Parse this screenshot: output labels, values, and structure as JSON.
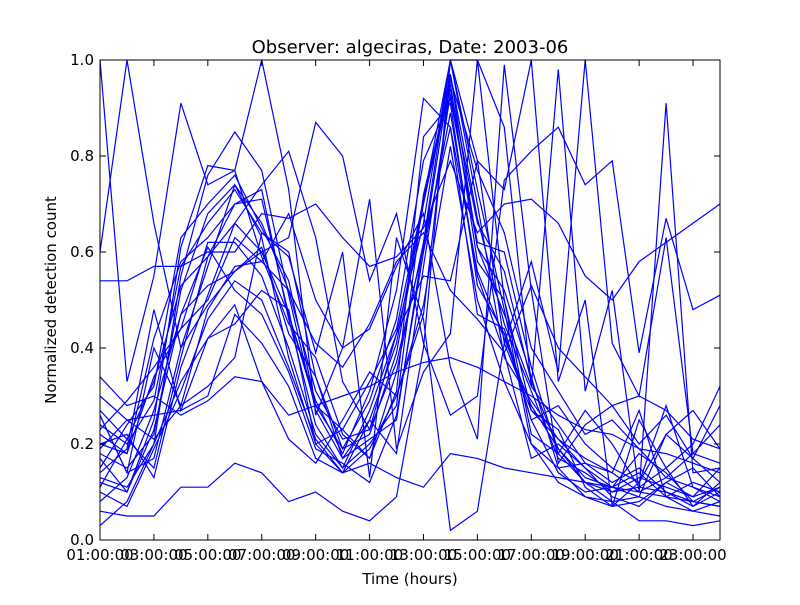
{
  "chart_data": {
    "type": "line",
    "title": "Observer: algeciras, Date: 2003-06",
    "xlabel": "Time (hours)",
    "ylabel": "Normalized detection count",
    "xlim": [
      1,
      24
    ],
    "ylim": [
      0,
      1
    ],
    "x_tick_labels": [
      "01:00:00",
      "03:00:00",
      "05:00:00",
      "07:00:00",
      "09:00:00",
      "11:00:00",
      "13:00:00",
      "15:00:00",
      "17:00:00",
      "19:00:00",
      "21:00:00",
      "23:00:00"
    ],
    "y_tick_labels": [
      "0.0",
      "0.2",
      "0.4",
      "0.6",
      "0.8",
      "1.0"
    ],
    "line_color": "#0000ff",
    "grid": false,
    "x": [
      1,
      2,
      3,
      4,
      5,
      6,
      7,
      8,
      9,
      10,
      11,
      12,
      13,
      14,
      15,
      16,
      17,
      18,
      19,
      20,
      21,
      22,
      23,
      24
    ],
    "series": [
      {
        "values": [
          1.0,
          0.33,
          0.55,
          0.91,
          0.74,
          0.77,
          1.0,
          0.73,
          0.26,
          0.4,
          0.71,
          0.19,
          0.35,
          0.43,
          1.0,
          0.86,
          0.32,
          0.98,
          0.31,
          0.52,
          0.1,
          0.91,
          0.14,
          0.15
        ]
      },
      {
        "values": [
          0.2,
          0.18,
          0.42,
          0.58,
          0.63,
          0.7,
          0.73,
          0.46,
          0.24,
          0.15,
          0.2,
          0.28,
          0.72,
          0.95,
          0.58,
          0.5,
          0.27,
          0.21,
          0.15,
          0.11,
          0.09,
          0.22,
          0.17,
          0.12
        ]
      },
      {
        "values": [
          0.15,
          0.24,
          0.32,
          0.63,
          0.7,
          0.76,
          0.65,
          0.54,
          0.28,
          0.19,
          0.29,
          0.46,
          0.79,
          0.92,
          0.62,
          0.6,
          0.36,
          0.18,
          0.27,
          0.2,
          0.11,
          0.15,
          0.07,
          0.1
        ]
      },
      {
        "values": [
          0.26,
          0.14,
          0.17,
          0.4,
          0.57,
          0.74,
          0.63,
          0.38,
          0.2,
          0.14,
          0.25,
          0.41,
          0.71,
          1.0,
          0.73,
          0.48,
          0.2,
          0.15,
          0.16,
          0.14,
          0.27,
          0.09,
          0.06,
          0.08
        ]
      },
      {
        "values": [
          0.08,
          0.13,
          0.27,
          0.47,
          0.53,
          0.56,
          0.61,
          0.43,
          0.34,
          0.17,
          0.21,
          0.25,
          0.62,
          1.0,
          0.79,
          0.41,
          0.27,
          0.23,
          0.11,
          0.07,
          0.12,
          0.28,
          0.11,
          0.09
        ]
      },
      {
        "values": [
          0.03,
          0.08,
          0.2,
          0.55,
          0.76,
          0.85,
          0.77,
          0.51,
          0.27,
          0.17,
          0.25,
          0.18,
          0.57,
          0.93,
          0.61,
          0.52,
          0.34,
          0.15,
          0.09,
          0.07,
          0.08,
          0.12,
          0.09,
          0.11
        ]
      },
      {
        "values": [
          0.12,
          0.1,
          0.25,
          0.61,
          0.78,
          0.77,
          0.59,
          0.45,
          0.38,
          0.22,
          0.17,
          0.31,
          0.84,
          0.91,
          0.53,
          0.43,
          0.25,
          0.14,
          0.1,
          0.11,
          0.18,
          0.14,
          0.08,
          0.07
        ]
      },
      {
        "values": [
          0.27,
          0.21,
          0.15,
          0.38,
          0.59,
          0.7,
          0.71,
          0.47,
          0.29,
          0.18,
          0.31,
          0.52,
          0.92,
          0.86,
          0.56,
          0.42,
          0.28,
          0.19,
          0.13,
          0.11,
          0.14,
          0.09,
          0.12,
          0.1
        ]
      },
      {
        "values": [
          0.18,
          0.15,
          0.22,
          0.52,
          0.68,
          0.74,
          0.66,
          0.52,
          0.31,
          0.21,
          0.23,
          0.37,
          0.61,
          0.97,
          0.67,
          0.45,
          0.31,
          0.17,
          0.14,
          0.1,
          0.13,
          0.11,
          0.09,
          0.15
        ]
      },
      {
        "values": [
          0.22,
          0.18,
          0.34,
          0.44,
          0.62,
          0.62,
          0.55,
          0.4,
          0.22,
          0.15,
          0.27,
          0.43,
          0.66,
          1.0,
          0.7,
          0.38,
          0.29,
          0.21,
          0.17,
          0.14,
          0.1,
          0.13,
          0.11,
          0.08
        ]
      },
      {
        "values": [
          0.1,
          0.07,
          0.19,
          0.31,
          0.46,
          0.54,
          0.5,
          0.36,
          0.21,
          0.14,
          0.19,
          0.3,
          0.49,
          0.82,
          0.5,
          0.33,
          0.2,
          0.12,
          0.09,
          0.08,
          0.09,
          0.07,
          0.06,
          0.05
        ]
      },
      {
        "values": [
          0.24,
          0.2,
          0.29,
          0.57,
          0.66,
          0.73,
          0.64,
          0.6,
          0.34,
          0.19,
          0.22,
          0.39,
          0.7,
          0.97,
          0.61,
          0.47,
          0.32,
          0.24,
          0.16,
          0.12,
          0.15,
          0.1,
          0.07,
          0.12
        ]
      },
      {
        "values": [
          0.17,
          0.1,
          0.23,
          0.47,
          0.61,
          0.52,
          0.47,
          0.35,
          0.19,
          0.16,
          0.12,
          0.26,
          0.6,
          0.89,
          0.55,
          0.39,
          0.17,
          0.2,
          0.15,
          0.09,
          0.07,
          0.12,
          0.15,
          0.09
        ]
      },
      {
        "values": [
          0.11,
          0.21,
          0.33,
          0.53,
          0.59,
          0.66,
          0.6,
          0.47,
          0.28,
          0.23,
          0.33,
          0.44,
          0.71,
          0.94,
          0.66,
          0.56,
          0.33,
          0.19,
          0.12,
          0.1,
          0.11,
          0.1,
          0.08,
          0.11
        ]
      },
      {
        "values": [
          0.06,
          0.05,
          0.05,
          0.11,
          0.11,
          0.16,
          0.14,
          0.08,
          0.1,
          0.06,
          0.04,
          0.09,
          0.4,
          1.0,
          1.0,
          0.5,
          0.22,
          0.18,
          0.12,
          0.08,
          0.04,
          0.04,
          0.03,
          0.04
        ]
      },
      {
        "values": [
          0.54,
          0.54,
          0.57,
          0.57,
          0.6,
          0.6,
          0.68,
          0.67,
          0.7,
          0.63,
          0.57,
          0.59,
          0.65,
          0.79,
          0.64,
          0.7,
          0.71,
          0.66,
          0.55,
          0.5,
          0.58,
          0.62,
          0.66,
          0.7
        ]
      },
      {
        "values": [
          0.6,
          1.0,
          0.66,
          0.4,
          0.49,
          0.56,
          0.6,
          0.63,
          0.87,
          0.8,
          0.54,
          0.68,
          0.41,
          0.26,
          0.3,
          0.75,
          0.81,
          0.86,
          0.74,
          0.79,
          0.39,
          0.67,
          0.48,
          0.51
        ]
      },
      {
        "values": [
          0.34,
          0.28,
          0.3,
          0.26,
          0.29,
          0.34,
          0.33,
          0.26,
          0.28,
          0.3,
          0.32,
          0.35,
          0.37,
          0.38,
          0.36,
          0.33,
          0.3,
          0.26,
          0.23,
          0.22,
          0.19,
          0.18,
          0.16,
          0.14
        ]
      },
      {
        "values": [
          0.19,
          0.25,
          0.26,
          0.27,
          0.3,
          0.47,
          0.41,
          0.32,
          0.17,
          0.14,
          0.16,
          0.13,
          0.11,
          0.18,
          0.17,
          0.15,
          0.14,
          0.13,
          0.12,
          0.11,
          0.1,
          0.09,
          0.08,
          0.07
        ]
      },
      {
        "values": [
          0.3,
          0.25,
          0.21,
          0.28,
          0.48,
          0.57,
          0.58,
          0.68,
          0.5,
          0.4,
          0.44,
          0.57,
          0.68,
          0.36,
          0.21,
          0.99,
          0.52,
          0.16,
          0.24,
          0.28,
          0.2,
          0.26,
          0.17,
          0.28
        ]
      },
      {
        "values": [
          0.26,
          0.14,
          0.4,
          0.28,
          0.32,
          0.38,
          0.64,
          0.59,
          0.39,
          0.6,
          0.13,
          0.63,
          0.46,
          0.02,
          0.06,
          0.41,
          0.58,
          0.35,
          1.0,
          0.41,
          0.3,
          0.63,
          0.18,
          0.16
        ]
      },
      {
        "values": [
          0.2,
          0.22,
          0.13,
          0.36,
          0.51,
          0.66,
          0.74,
          0.81,
          0.63,
          0.33,
          0.23,
          0.43,
          0.55,
          0.54,
          0.79,
          0.73,
          1.0,
          0.33,
          0.5,
          0.07,
          0.25,
          0.15,
          0.2,
          0.32
        ]
      },
      {
        "values": [
          0.14,
          0.19,
          0.48,
          0.27,
          0.42,
          0.49,
          0.33,
          0.21,
          0.16,
          0.25,
          0.35,
          0.3,
          0.47,
          0.96,
          0.77,
          0.64,
          0.4,
          0.31,
          0.22,
          0.25,
          0.19,
          0.13,
          0.18,
          0.24
        ]
      },
      {
        "values": [
          0.23,
          0.29,
          0.36,
          0.44,
          0.5,
          0.63,
          0.58,
          0.52,
          0.41,
          0.36,
          0.45,
          0.58,
          0.64,
          0.52,
          0.46,
          0.39,
          0.53,
          0.4,
          0.34,
          0.28,
          0.3,
          0.27,
          0.21,
          0.19
        ]
      },
      {
        "values": [
          0.13,
          0.11,
          0.2,
          0.33,
          0.42,
          0.45,
          0.52,
          0.48,
          0.2,
          0.23,
          0.17,
          0.35,
          0.62,
          0.86,
          0.47,
          0.44,
          0.25,
          0.28,
          0.2,
          0.15,
          0.12,
          0.22,
          0.27,
          0.19
        ]
      }
    ]
  }
}
